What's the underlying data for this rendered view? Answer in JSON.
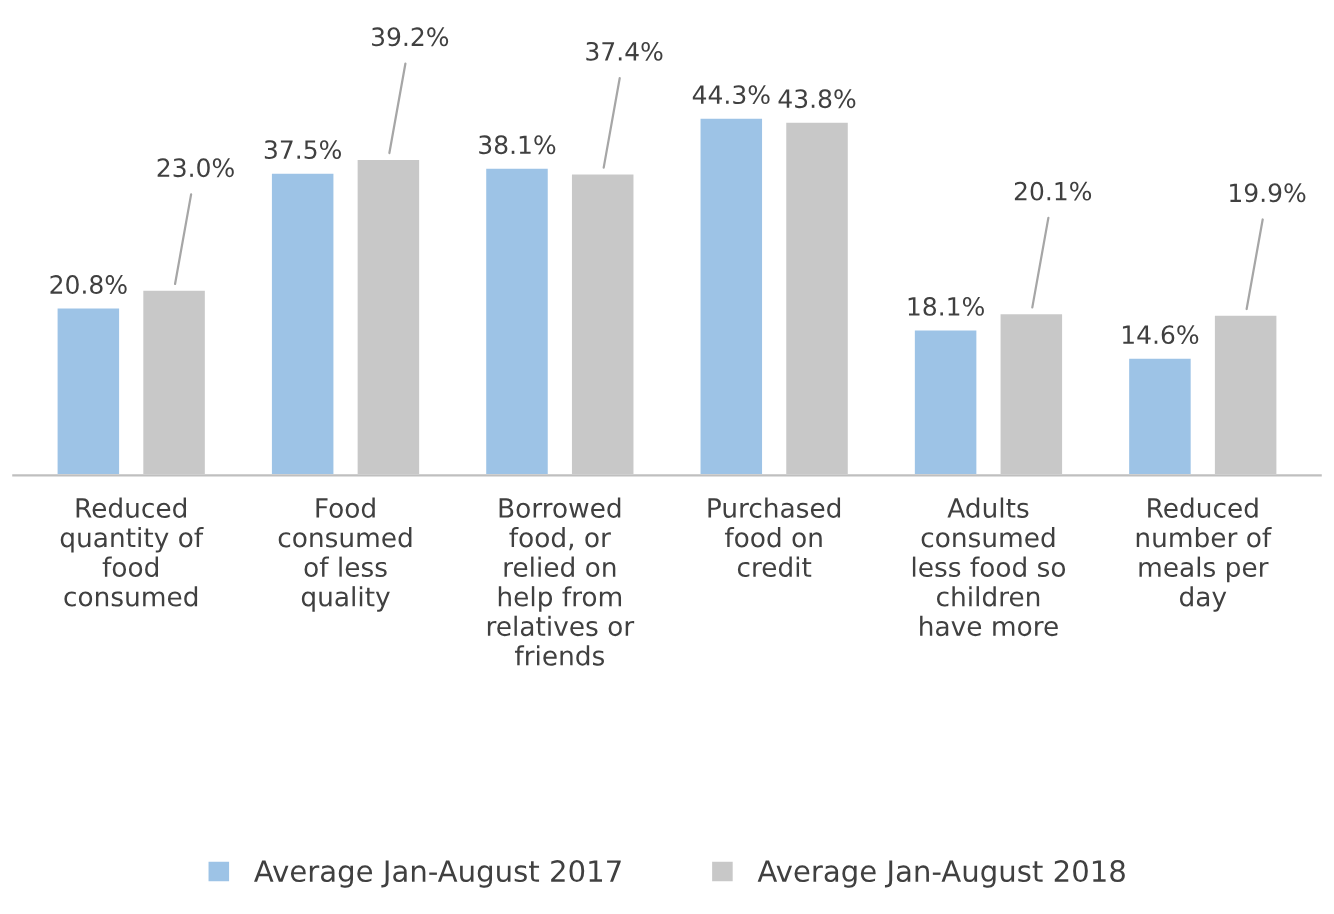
{
  "chart_data": {
    "type": "bar",
    "categories": [
      "Reduced\nquantity of\nfood\nconsumed",
      "Food\nconsumed\nof less\nquality",
      "Borrowed\nfood, or\nrelied on\nhelp from\nrelatives or\nfriends",
      "Purchased\nfood on\ncredit",
      "Adults\nconsumed\nless food so\nchildren\nhave more",
      "Reduced\nnumber of\nmeals per\nday"
    ],
    "series": [
      {
        "name": "Average Jan-August 2017",
        "color": "#9dc3e6",
        "values": [
          20.8,
          37.5,
          38.1,
          44.3,
          18.1,
          14.6
        ],
        "value_labels": [
          "20.8%",
          "37.5%",
          "38.1%",
          "44.3%",
          "18.1%",
          "14.6%"
        ]
      },
      {
        "name": "Average Jan-August 2018",
        "color": "#c8c8c8",
        "values": [
          23.0,
          39.2,
          37.4,
          43.8,
          20.1,
          19.9
        ],
        "value_labels": [
          "23.0%",
          "39.2%",
          "37.4%",
          "43.8%",
          "20.1%",
          "19.9%"
        ]
      }
    ],
    "legend": "bottom",
    "grid": false
  }
}
